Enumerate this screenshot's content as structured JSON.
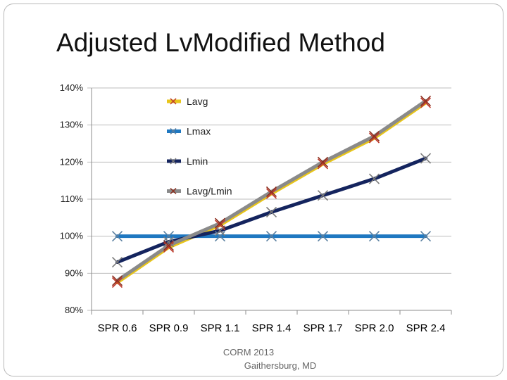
{
  "slide": {
    "title": "Adjusted LvModified Method",
    "footer_line1": "CORM 2013",
    "footer_line2": "Gaithersburg, MD"
  },
  "chart_data": {
    "type": "line",
    "title": "",
    "xlabel": "",
    "ylabel": "",
    "categories": [
      "SPR 0.6",
      "SPR 0.9",
      "SPR 1.1",
      "SPR 1.4",
      "SPR 1.7",
      "SPR 2.0",
      "SPR 2.4"
    ],
    "y_ticks": [
      "80%",
      "90%",
      "100%",
      "110%",
      "120%",
      "130%",
      "140%"
    ],
    "ylim": [
      80,
      140
    ],
    "grid": true,
    "legend_position": "top-left inside plot",
    "series": [
      {
        "name": "Lavg",
        "color": "#E8C51A",
        "marker_color": "#C0392B",
        "values": [
          87.5,
          97.0,
          103.0,
          111.5,
          119.5,
          126.5,
          136.0
        ]
      },
      {
        "name": "Lmax",
        "color": "#1F78C1",
        "marker_color": "#5A7FA0",
        "values": [
          100,
          100,
          100,
          100,
          100,
          100,
          100
        ]
      },
      {
        "name": "Lmin",
        "color": "#14245E",
        "marker_color": "#7A7A7A",
        "values": [
          93.0,
          98.5,
          101.5,
          106.5,
          111.0,
          115.5,
          121.0
        ]
      },
      {
        "name": "Lavg/Lmin",
        "color": "#8A8A8A",
        "marker_color": "#8B2E1E",
        "values": [
          88.0,
          97.5,
          103.5,
          112.0,
          120.0,
          127.0,
          136.5
        ]
      }
    ]
  }
}
